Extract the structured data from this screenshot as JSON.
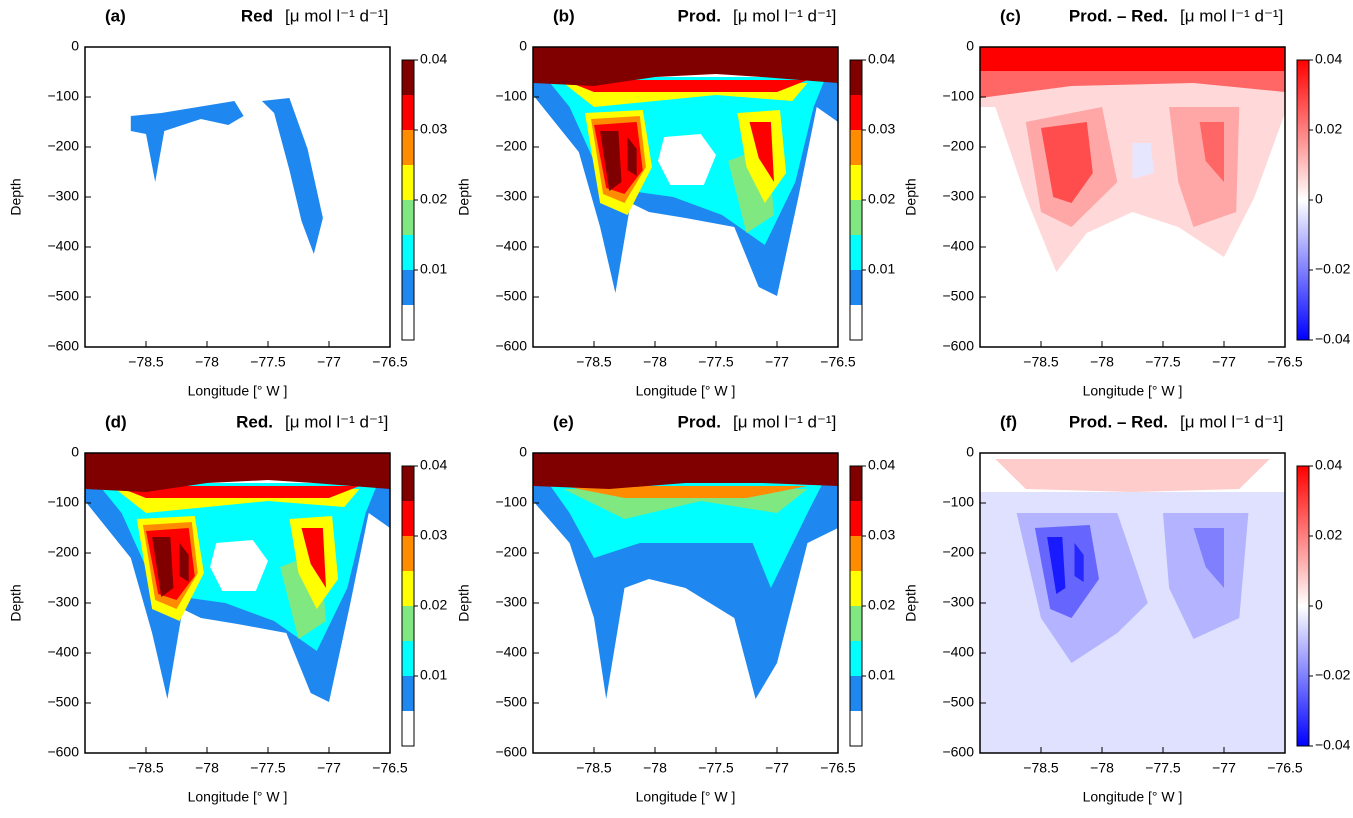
{
  "chart_data": [
    {
      "type": "contour",
      "label": "(a)",
      "title": "Red",
      "units": "[μ mol l⁻¹ d⁻¹]",
      "xlabel": "Longitude [° W ]",
      "ylabel": "Depth",
      "xlim": [
        -79,
        -76.5
      ],
      "xticks": [
        {
          "value": -78.5,
          "label": "−78.5"
        },
        {
          "value": -78,
          "label": "−78"
        },
        {
          "value": -77.5,
          "label": "−77.5"
        },
        {
          "value": -77,
          "label": "−77"
        },
        {
          "value": -76.5,
          "label": "−76.5"
        }
      ],
      "ylim": [
        -600,
        0
      ],
      "yticks": [
        0,
        {
          "value": -100,
          "label": "−100"
        },
        {
          "value": -200,
          "label": "−200"
        },
        {
          "value": -300,
          "label": "−300"
        },
        {
          "value": -400,
          "label": "−400"
        },
        {
          "value": -500,
          "label": "−500"
        },
        {
          "value": -600,
          "label": "−600"
        }
      ],
      "colorbar": {
        "levels": [
          0,
          0.005,
          0.01,
          0.015,
          0.02,
          0.025,
          0.03,
          0.035,
          0.04
        ],
        "colors": [
          "#ffffff",
          "#1e88f0",
          "#00ffff",
          "#80e880",
          "#ffff00",
          "#ff8c00",
          "#ff0000",
          "#800000"
        ],
        "ticks": [
          0.01,
          0.02,
          0.03,
          0.04
        ]
      }
    },
    {
      "type": "contour",
      "label": "(b)",
      "title": "Prod.",
      "units": "[μ mol l⁻¹ d⁻¹]",
      "xlabel": "Longitude [° W ]",
      "ylabel": "Depth",
      "xlim": [
        -79,
        -76.5
      ],
      "xticks": [
        {
          "value": -78.5,
          "label": "−78.5"
        },
        {
          "value": -78,
          "label": "−78"
        },
        {
          "value": -77.5,
          "label": "−77.5"
        },
        {
          "value": -77,
          "label": "−77"
        },
        {
          "value": -76.5,
          "label": "−76.5"
        }
      ],
      "ylim": [
        -600,
        0
      ],
      "yticks": [
        0,
        {
          "value": -100,
          "label": "−100"
        },
        {
          "value": -200,
          "label": "−200"
        },
        {
          "value": -300,
          "label": "−300"
        },
        {
          "value": -400,
          "label": "−400"
        },
        {
          "value": -500,
          "label": "−500"
        },
        {
          "value": -600,
          "label": "−600"
        }
      ],
      "colorbar": {
        "levels": [
          0,
          0.005,
          0.01,
          0.015,
          0.02,
          0.025,
          0.03,
          0.035,
          0.04
        ],
        "colors": [
          "#ffffff",
          "#1e88f0",
          "#00ffff",
          "#80e880",
          "#ffff00",
          "#ff8c00",
          "#ff0000",
          "#800000"
        ],
        "ticks": [
          0.01,
          0.02,
          0.03,
          0.04
        ]
      }
    },
    {
      "type": "contour",
      "label": "(c)",
      "title": "Prod. – Red.",
      "units": "[μ mol l⁻¹ d⁻¹]",
      "xlabel": "Longitude [° W ]",
      "ylabel": "Depth",
      "xlim": [
        -79,
        -76.5
      ],
      "xticks": [
        {
          "value": -78.5,
          "label": "−78.5"
        },
        {
          "value": -78,
          "label": "−78"
        },
        {
          "value": -77.5,
          "label": "−77.5"
        },
        {
          "value": -77,
          "label": "−77"
        },
        {
          "value": -76.5,
          "label": "−76.5"
        }
      ],
      "ylim": [
        -600,
        0
      ],
      "yticks": [
        0,
        {
          "value": -100,
          "label": "−100"
        },
        {
          "value": -200,
          "label": "−200"
        },
        {
          "value": -300,
          "label": "−300"
        },
        {
          "value": -400,
          "label": "−400"
        },
        {
          "value": -500,
          "label": "−500"
        },
        {
          "value": -600,
          "label": "−600"
        }
      ],
      "colorbar": {
        "clim": [
          -0.04,
          0.04
        ],
        "colors": [
          "#0000ff",
          "#ffffff",
          "#ff0000"
        ],
        "ticks": [
          {
            "value": -0.04,
            "label": "−0.04"
          },
          {
            "value": -0.02,
            "label": "−0.02"
          },
          0,
          0.02,
          0.04
        ]
      }
    },
    {
      "type": "contour",
      "label": "(d)",
      "title": "Red.",
      "units": "[μ mol l⁻¹ d⁻¹]",
      "xlabel": "Longitude [° W ]",
      "ylabel": "Depth",
      "xlim": [
        -79,
        -76.5
      ],
      "xticks": [
        {
          "value": -78.5,
          "label": "−78.5"
        },
        {
          "value": -78,
          "label": "−78"
        },
        {
          "value": -77.5,
          "label": "−77.5"
        },
        {
          "value": -77,
          "label": "−77"
        },
        {
          "value": -76.5,
          "label": "−76.5"
        }
      ],
      "ylim": [
        -600,
        0
      ],
      "yticks": [
        0,
        {
          "value": -100,
          "label": "−100"
        },
        {
          "value": -200,
          "label": "−200"
        },
        {
          "value": -300,
          "label": "−300"
        },
        {
          "value": -400,
          "label": "−400"
        },
        {
          "value": -500,
          "label": "−500"
        },
        {
          "value": -600,
          "label": "−600"
        }
      ],
      "colorbar": {
        "levels": [
          0,
          0.005,
          0.01,
          0.015,
          0.02,
          0.025,
          0.03,
          0.035,
          0.04
        ],
        "colors": [
          "#ffffff",
          "#1e88f0",
          "#00ffff",
          "#80e880",
          "#ffff00",
          "#ff8c00",
          "#ff0000",
          "#800000"
        ],
        "ticks": [
          0.01,
          0.02,
          0.03,
          0.04
        ]
      }
    },
    {
      "type": "contour",
      "label": "(e)",
      "title": "Prod.",
      "units": "[μ mol l⁻¹ d⁻¹]",
      "xlabel": "Longitude [° W ]",
      "ylabel": "Depth",
      "xlim": [
        -79,
        -76.5
      ],
      "xticks": [
        {
          "value": -78.5,
          "label": "−78.5"
        },
        {
          "value": -78,
          "label": "−78"
        },
        {
          "value": -77.5,
          "label": "−77.5"
        },
        {
          "value": -77,
          "label": "−77"
        },
        {
          "value": -76.5,
          "label": "−76.5"
        }
      ],
      "ylim": [
        -600,
        0
      ],
      "yticks": [
        0,
        {
          "value": -100,
          "label": "−100"
        },
        {
          "value": -200,
          "label": "−200"
        },
        {
          "value": -300,
          "label": "−300"
        },
        {
          "value": -400,
          "label": "−400"
        },
        {
          "value": -500,
          "label": "−500"
        },
        {
          "value": -600,
          "label": "−600"
        }
      ],
      "colorbar": {
        "levels": [
          0,
          0.005,
          0.01,
          0.015,
          0.02,
          0.025,
          0.03,
          0.035,
          0.04
        ],
        "colors": [
          "#ffffff",
          "#1e88f0",
          "#00ffff",
          "#80e880",
          "#ffff00",
          "#ff8c00",
          "#ff0000",
          "#800000"
        ],
        "ticks": [
          0.01,
          0.02,
          0.03,
          0.04
        ]
      }
    },
    {
      "type": "contour",
      "label": "(f)",
      "title": "Prod. – Red.",
      "units": "[μ mol l⁻¹ d⁻¹]",
      "xlabel": "Longitude [° W ]",
      "ylabel": "Depth",
      "xlim": [
        -79,
        -76.5
      ],
      "xticks": [
        {
          "value": -78.5,
          "label": "−78.5"
        },
        {
          "value": -78,
          "label": "−78"
        },
        {
          "value": -77.5,
          "label": "−77.5"
        },
        {
          "value": -77,
          "label": "−77"
        },
        {
          "value": -76.5,
          "label": "−76.5"
        }
      ],
      "ylim": [
        -600,
        0
      ],
      "yticks": [
        0,
        {
          "value": -100,
          "label": "−100"
        },
        {
          "value": -200,
          "label": "−200"
        },
        {
          "value": -300,
          "label": "−300"
        },
        {
          "value": -400,
          "label": "−400"
        },
        {
          "value": -500,
          "label": "−500"
        },
        {
          "value": -600,
          "label": "−600"
        }
      ],
      "colorbar": {
        "clim": [
          -0.04,
          0.04
        ],
        "colors": [
          "#0000ff",
          "#ffffff",
          "#ff0000"
        ],
        "ticks": [
          {
            "value": -0.04,
            "label": "−0.04"
          },
          {
            "value": -0.02,
            "label": "−0.02"
          },
          0,
          0.02,
          0.04
        ]
      }
    }
  ]
}
